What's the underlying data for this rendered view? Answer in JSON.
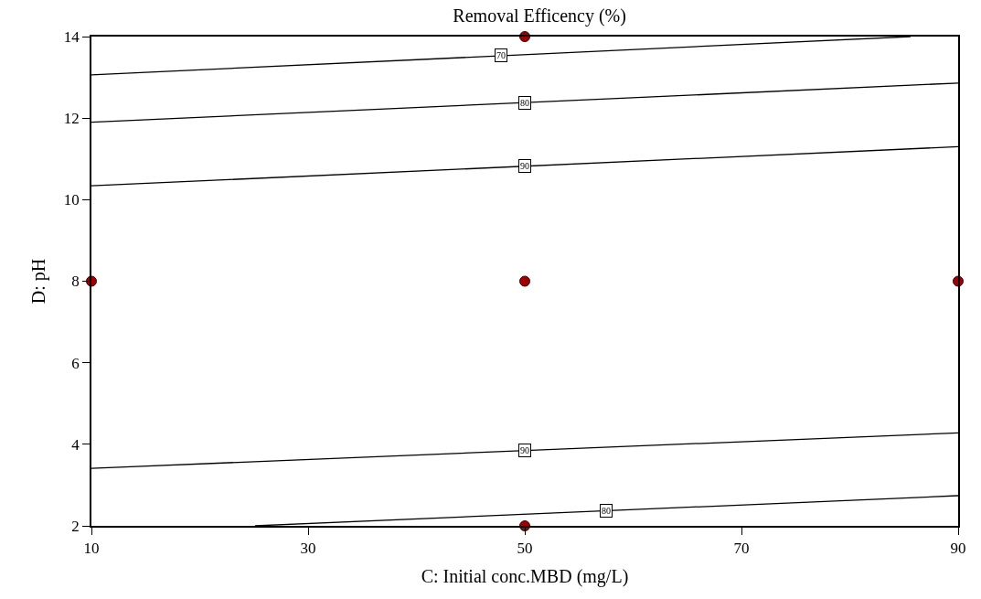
{
  "chart_data": {
    "type": "line",
    "title": "Removal Efficency (%)",
    "xlabel": "C: Initial conc.MBD (mg/L)",
    "ylabel": "D: pH",
    "xlim": [
      10,
      90
    ],
    "xticks": [
      10,
      30,
      50,
      70,
      90
    ],
    "ylim": [
      2,
      14
    ],
    "yticks": [
      2,
      4,
      6,
      8,
      10,
      12,
      14
    ],
    "legend": false,
    "series": [
      {
        "name": "70",
        "color": "#000000",
        "x": [
          10,
          85.6
        ],
        "values": [
          13.06,
          14
        ]
      },
      {
        "name": "80",
        "color": "#000000",
        "x": [
          10,
          90
        ],
        "values": [
          11.9,
          12.86
        ]
      },
      {
        "name": "90",
        "color": "#000000",
        "x": [
          10,
          90
        ],
        "values": [
          10.34,
          11.3
        ]
      },
      {
        "name": "90",
        "color": "#000000",
        "x": [
          10,
          90
        ],
        "values": [
          3.41,
          4.28
        ]
      },
      {
        "name": "80",
        "color": "#000000",
        "x": [
          25.1,
          90
        ],
        "values": [
          2,
          2.74
        ]
      },
      {
        "type": "scatter",
        "color": "#a00000",
        "marker": "circle",
        "x": [
          50,
          10,
          50,
          90,
          50
        ],
        "values": [
          14,
          8,
          8,
          8,
          2
        ]
      }
    ]
  }
}
